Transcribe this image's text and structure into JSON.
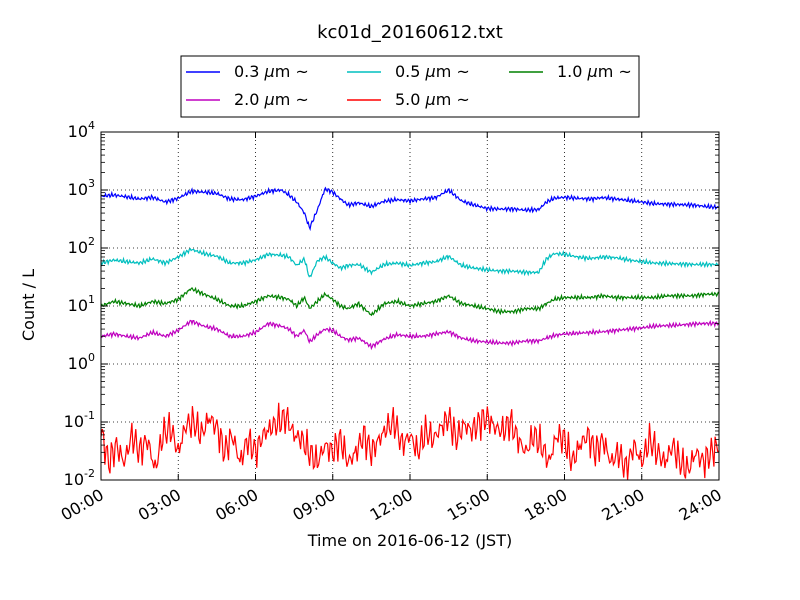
{
  "chart_data": {
    "type": "line",
    "title": "kc01d_20160612.txt",
    "xlabel": "Time on 2016-06-12 (JST)",
    "ylabel": "Count / L",
    "yscale": "log",
    "ylim": [
      0.01,
      10000
    ],
    "xlim": [
      "00:00",
      "24:00"
    ],
    "x_unit": "hours",
    "x_tick_labels": [
      "00:00",
      "03:00",
      "06:00",
      "09:00",
      "12:00",
      "15:00",
      "18:00",
      "21:00",
      "24:00"
    ],
    "y_tick_labels": [
      {
        "base": "10",
        "exp": "-2"
      },
      {
        "base": "10",
        "exp": "-1"
      },
      {
        "base": "10",
        "exp": "0"
      },
      {
        "base": "10",
        "exp": "1"
      },
      {
        "base": "10",
        "exp": "2"
      },
      {
        "base": "10",
        "exp": "3"
      },
      {
        "base": "10",
        "exp": "4"
      }
    ],
    "grid": true,
    "legend_position": "top-center, above plot",
    "legend_suffix": "~",
    "series": [
      {
        "name": "0.3 μm",
        "legend_label": "0.3",
        "color": "#0000ff",
        "x": [
          0,
          0.5,
          1,
          1.5,
          2,
          2.5,
          3,
          3.5,
          4,
          4.5,
          5,
          5.5,
          6,
          6.5,
          7,
          7.3,
          7.6,
          7.9,
          8.1,
          8.4,
          8.7,
          9,
          9.3,
          9.6,
          10,
          10.5,
          11,
          11.5,
          12,
          12.5,
          13,
          13.5,
          14,
          14.5,
          15,
          15.5,
          16,
          16.5,
          17,
          17.3,
          17.6,
          18,
          18.5,
          19,
          19.5,
          20,
          20.5,
          21,
          21.5,
          22,
          22.5,
          23,
          23.5,
          24
        ],
        "values": [
          780,
          820,
          760,
          700,
          750,
          620,
          720,
          950,
          920,
          870,
          700,
          680,
          780,
          950,
          1000,
          820,
          620,
          400,
          220,
          450,
          1050,
          920,
          700,
          550,
          600,
          520,
          640,
          680,
          650,
          700,
          740,
          1000,
          650,
          550,
          480,
          470,
          470,
          450,
          460,
          620,
          720,
          750,
          720,
          700,
          740,
          700,
          660,
          620,
          580,
          570,
          560,
          550,
          520,
          500
        ]
      },
      {
        "name": "0.5 μm",
        "legend_label": "0.5",
        "color": "#00bfbf",
        "x": [
          0,
          0.5,
          1,
          1.5,
          2,
          2.5,
          3,
          3.5,
          4,
          4.5,
          5,
          5.5,
          6,
          6.5,
          7,
          7.3,
          7.6,
          7.9,
          8.1,
          8.4,
          8.7,
          9,
          9.3,
          9.6,
          10,
          10.5,
          11,
          11.5,
          12,
          12.5,
          13,
          13.5,
          14,
          14.5,
          15,
          15.5,
          16,
          16.5,
          17,
          17.3,
          17.6,
          18,
          18.5,
          19,
          19.5,
          20,
          20.5,
          21,
          21.5,
          22,
          22.5,
          23,
          23.5,
          24
        ],
        "values": [
          55,
          62,
          58,
          55,
          65,
          55,
          70,
          95,
          80,
          72,
          55,
          55,
          62,
          78,
          75,
          70,
          50,
          65,
          30,
          60,
          70,
          55,
          45,
          50,
          52,
          38,
          52,
          55,
          50,
          55,
          58,
          72,
          50,
          45,
          42,
          40,
          40,
          38,
          38,
          65,
          80,
          78,
          70,
          66,
          70,
          68,
          62,
          58,
          55,
          54,
          53,
          52,
          52,
          52
        ]
      },
      {
        "name": "1.0 μm",
        "legend_label": "1.0",
        "color": "#008000",
        "x": [
          0,
          0.5,
          1,
          1.5,
          2,
          2.5,
          3,
          3.5,
          4,
          4.5,
          5,
          5.5,
          6,
          6.5,
          7,
          7.3,
          7.6,
          7.9,
          8.1,
          8.4,
          8.7,
          9,
          9.3,
          9.6,
          10,
          10.5,
          11,
          11.5,
          12,
          12.5,
          13,
          13.5,
          14,
          14.5,
          15,
          15.5,
          16,
          16.5,
          17,
          17.3,
          17.6,
          18,
          18.5,
          19,
          19.5,
          20,
          20.5,
          21,
          21.5,
          22,
          22.5,
          23,
          23.5,
          24
        ],
        "values": [
          10,
          12,
          11,
          10,
          12,
          11,
          13,
          20,
          16,
          13,
          10,
          10,
          12,
          15,
          14,
          13,
          10,
          14,
          9,
          12,
          16,
          13,
          10,
          9,
          11,
          7,
          11,
          12,
          10,
          11,
          12,
          15,
          11,
          10,
          9,
          8,
          8,
          9,
          9,
          11,
          13,
          14,
          14,
          14,
          15,
          14,
          14,
          14,
          14,
          15,
          15,
          15,
          16,
          16
        ]
      },
      {
        "name": "2.0 μm",
        "legend_label": "2.0",
        "color": "#bf00bf",
        "x": [
          0,
          0.5,
          1,
          1.5,
          2,
          2.5,
          3,
          3.5,
          4,
          4.5,
          5,
          5.5,
          6,
          6.5,
          7,
          7.3,
          7.6,
          7.9,
          8.1,
          8.4,
          8.7,
          9,
          9.3,
          9.6,
          10,
          10.5,
          11,
          11.5,
          12,
          12.5,
          13,
          13.5,
          14,
          14.5,
          15,
          15.5,
          16,
          16.5,
          17,
          17.3,
          17.6,
          18,
          18.5,
          19,
          19.5,
          20,
          20.5,
          21,
          21.5,
          22,
          22.5,
          23,
          23.5,
          24
        ],
        "values": [
          3,
          3.3,
          3,
          2.8,
          3.5,
          3,
          3.8,
          5.5,
          4.5,
          4,
          3,
          3,
          3.5,
          5,
          4.5,
          4,
          3,
          3.8,
          2.4,
          3.2,
          4,
          3.8,
          3,
          2.6,
          2.8,
          2,
          2.7,
          3.2,
          3,
          3,
          3.3,
          3.6,
          2.8,
          2.5,
          2.4,
          2.3,
          2.3,
          2.5,
          2.5,
          2.8,
          3.1,
          3.3,
          3.4,
          3.5,
          3.6,
          3.8,
          4,
          4.2,
          4.5,
          4.6,
          4.7,
          4.9,
          5,
          5
        ]
      },
      {
        "name": "5.0 μm",
        "legend_label": "5.0",
        "color": "#ff0000",
        "x": [
          0,
          0.3,
          0.6,
          0.9,
          1.2,
          1.5,
          1.8,
          2.1,
          2.4,
          2.7,
          3,
          3.3,
          3.6,
          3.9,
          4.2,
          4.5,
          4.8,
          5.1,
          5.4,
          5.7,
          6,
          6.3,
          6.6,
          6.9,
          7.2,
          7.5,
          7.8,
          8.1,
          8.4,
          8.7,
          9,
          9.3,
          9.6,
          9.9,
          10.2,
          10.5,
          10.8,
          11.1,
          11.4,
          11.7,
          12,
          12.3,
          12.6,
          12.9,
          13.2,
          13.5,
          13.8,
          14.1,
          14.4,
          14.7,
          15,
          15.3,
          15.6,
          15.9,
          16.2,
          16.5,
          16.8,
          17.1,
          17.4,
          17.7,
          18,
          18.3,
          18.6,
          18.9,
          19.2,
          19.5,
          19.8,
          20.1,
          20.4,
          20.7,
          21,
          21.3,
          21.6,
          21.9,
          22.2,
          22.5,
          22.8,
          23.1,
          23.4,
          23.7,
          24
        ],
        "values": [
          0.07,
          0.02,
          0.04,
          0.02,
          0.06,
          0.03,
          0.05,
          0.015,
          0.06,
          0.08,
          0.03,
          0.09,
          0.1,
          0.06,
          0.12,
          0.08,
          0.03,
          0.06,
          0.02,
          0.05,
          0.03,
          0.06,
          0.08,
          0.1,
          0.12,
          0.06,
          0.05,
          0.03,
          0.02,
          0.04,
          0.03,
          0.05,
          0.02,
          0.03,
          0.06,
          0.03,
          0.05,
          0.08,
          0.1,
          0.04,
          0.06,
          0.03,
          0.07,
          0.05,
          0.08,
          0.12,
          0.05,
          0.09,
          0.07,
          0.1,
          0.12,
          0.08,
          0.07,
          0.1,
          0.05,
          0.03,
          0.06,
          0.04,
          0.02,
          0.06,
          0.05,
          0.02,
          0.04,
          0.06,
          0.03,
          0.05,
          0.02,
          0.03,
          0.015,
          0.04,
          0.02,
          0.05,
          0.03,
          0.02,
          0.04,
          0.02,
          0.015,
          0.03,
          0.02,
          0.03,
          0.04
        ]
      }
    ]
  }
}
